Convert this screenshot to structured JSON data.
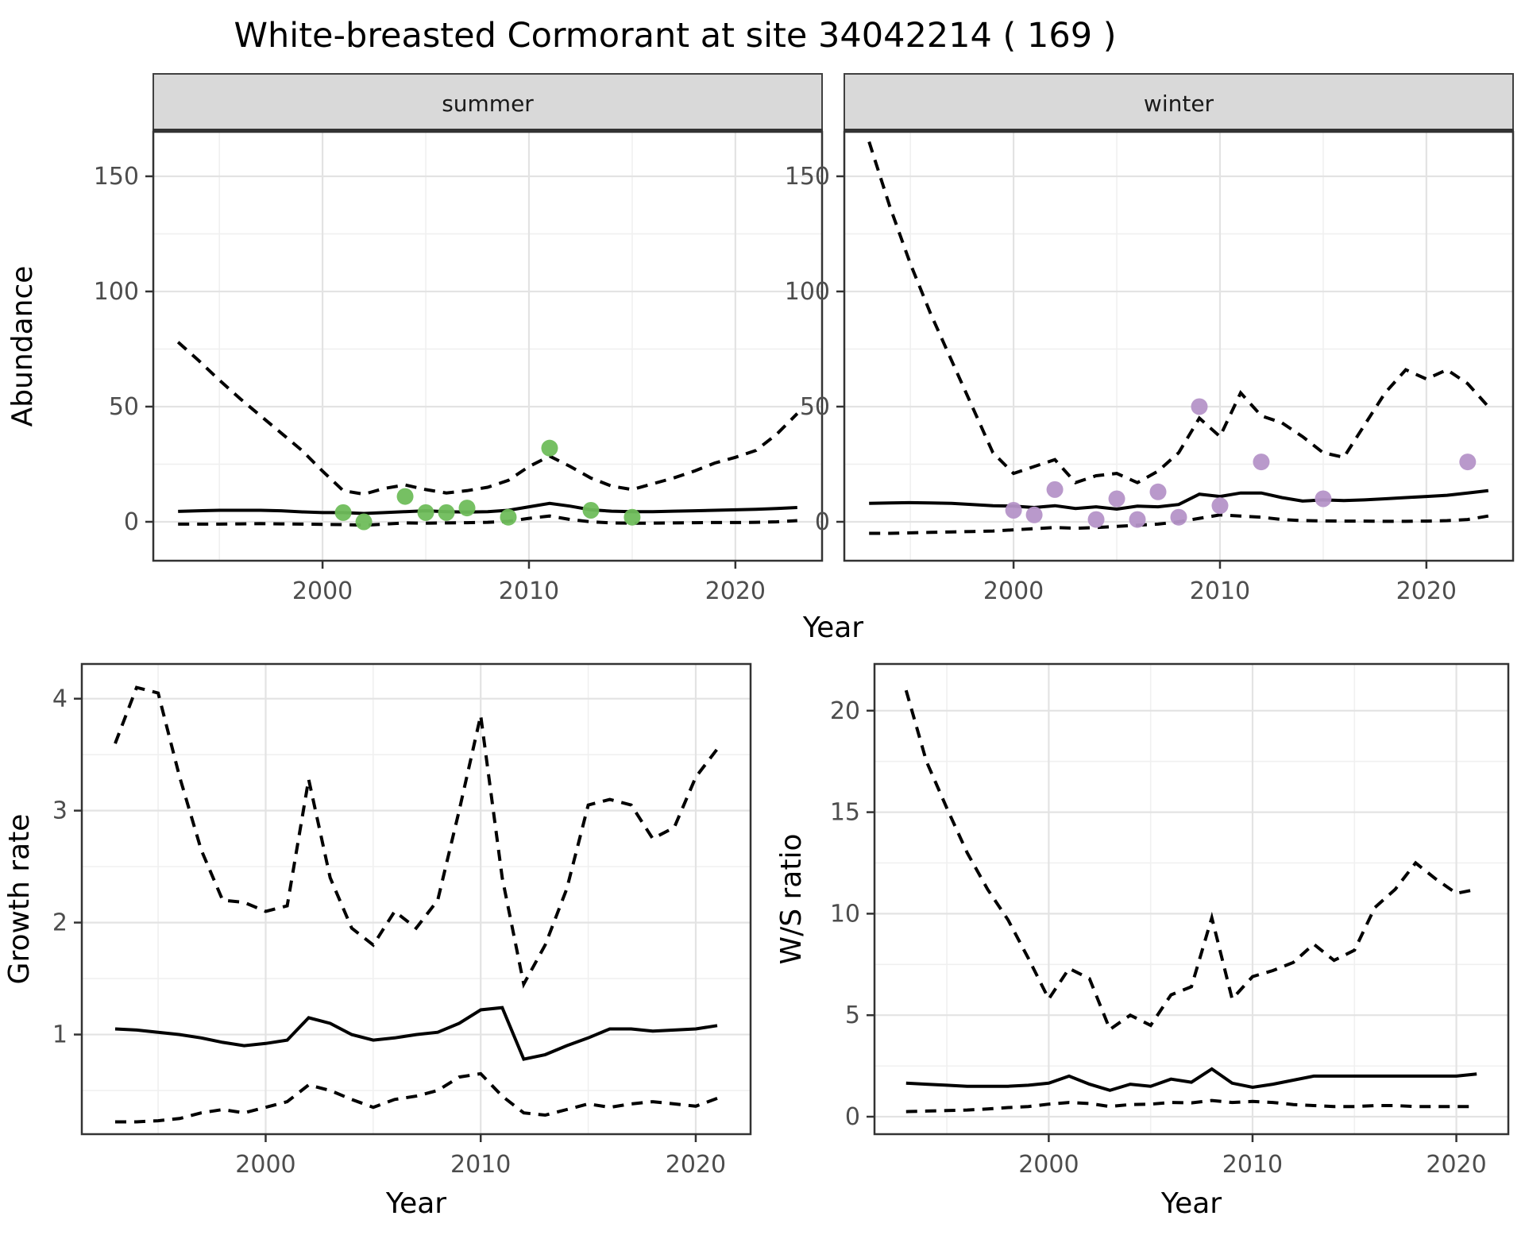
{
  "title": "White-breasted Cormorant at site 34042214 ( 169 )",
  "colors": {
    "summer_point": "#6fbd5b",
    "winter_point": "#b593c8",
    "line": "#000000",
    "strip_bg": "#d9d9d9",
    "panel_border": "#333333",
    "grid_major": "#e3e3e3",
    "grid_minor": "#f0f0f0",
    "tick_text": "#4d4d4d"
  },
  "labels": {
    "facet_summer": "summer",
    "facet_winter": "winter",
    "abundance_axis": "Abundance",
    "growth_axis": "Growth rate",
    "ws_axis": "W/S ratio",
    "year_axis_top": "Year",
    "year_axis_bottom_left": "Year",
    "year_axis_bottom_right": "Year"
  },
  "chart_data": [
    {
      "id": "abundance-summer",
      "type": "line",
      "facet": "summer",
      "xlabel": "Year",
      "ylabel": "Abundance",
      "xlim": [
        1991.8,
        2024.2
      ],
      "ylim": [
        -16.9,
        169.3
      ],
      "xticks": [
        2000,
        2010,
        2020
      ],
      "yticks": [
        0,
        50,
        100,
        150
      ],
      "xminor": [
        1995,
        2005,
        2015
      ],
      "yminor": [
        25,
        75,
        125
      ],
      "grid": true,
      "legend": "none",
      "series": [
        {
          "name": "upper-ci",
          "style": "dashed",
          "x": [
            1993,
            1994,
            1995,
            1996,
            1997,
            1998,
            1999,
            2000,
            2001,
            2002,
            2003,
            2004,
            2005,
            2006,
            2007,
            2008,
            2009,
            2010,
            2011,
            2012,
            2013,
            2014,
            2015,
            2016,
            2017,
            2018,
            2019,
            2020,
            2021,
            2022,
            2023
          ],
          "y": [
            78,
            70,
            61.5,
            53.5,
            46,
            38.5,
            31,
            22,
            13.5,
            12,
            14.5,
            16,
            14,
            12.5,
            13.5,
            15,
            18,
            24,
            28.5,
            24,
            19,
            15.5,
            14,
            16.5,
            19,
            22,
            25.5,
            28,
            31,
            38,
            47
          ]
        },
        {
          "name": "fitted-median",
          "style": "solid",
          "x": [
            1993,
            1994,
            1995,
            1996,
            1997,
            1998,
            1999,
            2000,
            2001,
            2002,
            2003,
            2004,
            2005,
            2006,
            2007,
            2008,
            2009,
            2010,
            2011,
            2012,
            2013,
            2014,
            2015,
            2016,
            2017,
            2018,
            2019,
            2020,
            2021,
            2022,
            2023
          ],
          "y": [
            4.5,
            4.8,
            5,
            5,
            5,
            4.8,
            4.3,
            4,
            4,
            3.6,
            4,
            4.4,
            4.8,
            4.4,
            4.2,
            4.4,
            5,
            6.5,
            8,
            6.8,
            5.2,
            4.6,
            4.4,
            4.4,
            4.6,
            4.8,
            5,
            5.2,
            5.4,
            5.8,
            6.2
          ]
        },
        {
          "name": "lower-ci",
          "style": "dashed",
          "x": [
            1993,
            1994,
            1995,
            1996,
            1997,
            1998,
            1999,
            2000,
            2001,
            2002,
            2003,
            2004,
            2005,
            2006,
            2007,
            2008,
            2009,
            2010,
            2011,
            2012,
            2013,
            2014,
            2015,
            2016,
            2017,
            2018,
            2019,
            2020,
            2021,
            2022,
            2023
          ],
          "y": [
            -1,
            -1,
            -1,
            -0.9,
            -0.8,
            -0.9,
            -1,
            -1.1,
            -1.2,
            -1.5,
            -1,
            -0.5,
            -0.6,
            -0.5,
            -0.4,
            -0.2,
            0.2,
            1.5,
            2.5,
            1,
            0,
            -0.5,
            -0.6,
            -0.6,
            -0.5,
            -0.4,
            -0.3,
            -0.3,
            -0.2,
            0,
            0.5
          ]
        },
        {
          "name": "observed-counts",
          "style": "points",
          "color": "#6fbd5b",
          "x": [
            2001,
            2002,
            2004,
            2005,
            2006,
            2007,
            2009,
            2011,
            2013,
            2015
          ],
          "y": [
            4,
            0,
            11,
            4,
            4,
            6,
            2,
            32,
            5,
            2
          ]
        }
      ]
    },
    {
      "id": "abundance-winter",
      "type": "line",
      "facet": "winter",
      "xlabel": "Year",
      "ylabel": "Abundance",
      "xlim": [
        1991.8,
        2024.2
      ],
      "ylim": [
        -16.9,
        169.3
      ],
      "xticks": [
        2000,
        2010,
        2020
      ],
      "yticks": [
        0,
        50,
        100,
        150
      ],
      "xminor": [
        1995,
        2005,
        2015
      ],
      "yminor": [
        25,
        75,
        125
      ],
      "grid": true,
      "legend": "none",
      "series": [
        {
          "name": "upper-ci",
          "style": "dashed",
          "x": [
            1993,
            1994,
            1995,
            1996,
            1997,
            1998,
            1999,
            2000,
            2001,
            2002,
            2003,
            2004,
            2005,
            2006,
            2007,
            2008,
            2009,
            2010,
            2011,
            2012,
            2013,
            2014,
            2015,
            2016,
            2017,
            2018,
            2019,
            2020,
            2021,
            2022,
            2023
          ],
          "y": [
            165,
            137,
            112,
            90,
            70,
            50,
            30,
            21,
            24,
            27,
            17,
            20,
            21,
            17,
            22,
            30,
            45,
            37,
            56,
            46,
            43,
            37,
            30,
            28,
            42,
            56,
            66,
            62,
            66,
            60,
            50
          ]
        },
        {
          "name": "fitted-median",
          "style": "solid",
          "x": [
            1993,
            1994,
            1995,
            1996,
            1997,
            1998,
            1999,
            2000,
            2001,
            2002,
            2003,
            2004,
            2005,
            2006,
            2007,
            2008,
            2009,
            2010,
            2011,
            2012,
            2013,
            2014,
            2015,
            2016,
            2017,
            2018,
            2019,
            2020,
            2021,
            2022,
            2023
          ],
          "y": [
            8,
            8.2,
            8.3,
            8.2,
            8,
            7.5,
            7,
            6.8,
            6.2,
            7,
            5.8,
            6.5,
            5.5,
            6.8,
            6.5,
            7.5,
            12,
            11,
            12.5,
            12.5,
            10.5,
            9,
            9.5,
            9.2,
            9.5,
            10,
            10.5,
            11,
            11.5,
            12.5,
            13.5
          ]
        },
        {
          "name": "lower-ci",
          "style": "dashed",
          "x": [
            1993,
            1994,
            1995,
            1996,
            1997,
            1998,
            1999,
            2000,
            2001,
            2002,
            2003,
            2004,
            2005,
            2006,
            2007,
            2008,
            2009,
            2010,
            2011,
            2012,
            2013,
            2014,
            2015,
            2016,
            2017,
            2018,
            2019,
            2020,
            2021,
            2022,
            2023
          ],
          "y": [
            -5,
            -5,
            -4.8,
            -4.6,
            -4.4,
            -4.2,
            -4,
            -3.5,
            -3,
            -2.5,
            -2.8,
            -2.5,
            -2,
            -1.5,
            -1,
            0,
            1.5,
            3,
            2.5,
            2,
            1,
            0.5,
            0.4,
            0.3,
            0.3,
            0.2,
            0.2,
            0.3,
            0.5,
            1,
            2.5
          ]
        },
        {
          "name": "observed-counts",
          "style": "points",
          "color": "#b593c8",
          "x": [
            2000,
            2001,
            2002,
            2004,
            2005,
            2006,
            2007,
            2008,
            2009,
            2010,
            2012,
            2015,
            2022
          ],
          "y": [
            5,
            3,
            14,
            1,
            10,
            1,
            13,
            2,
            50,
            7,
            26,
            10,
            26
          ]
        }
      ]
    },
    {
      "id": "growth-rate",
      "type": "line",
      "facet": null,
      "xlabel": "Year",
      "ylabel": "Growth rate",
      "xlim": [
        1991.45,
        2022.55
      ],
      "ylim": [
        0.11,
        4.31
      ],
      "xticks": [
        2000,
        2010,
        2020
      ],
      "yticks": [
        1,
        2,
        3,
        4
      ],
      "xminor": [
        1995,
        2005,
        2015
      ],
      "yminor": [
        0.5,
        1.5,
        2.5,
        3.5
      ],
      "grid": true,
      "legend": "none",
      "series": [
        {
          "name": "upper-ci",
          "style": "dashed",
          "x": [
            1993,
            1994,
            1995,
            1996,
            1997,
            1998,
            1999,
            2000,
            2001,
            2002,
            2003,
            2004,
            2005,
            2006,
            2007,
            2008,
            2009,
            2010,
            2011,
            2012,
            2013,
            2014,
            2015,
            2016,
            2017,
            2018,
            2019,
            2020,
            2021
          ],
          "y": [
            3.6,
            4.1,
            4.05,
            3.3,
            2.65,
            2.2,
            2.18,
            2.1,
            2.15,
            3.28,
            2.4,
            1.95,
            1.8,
            2.1,
            1.95,
            2.2,
            3.0,
            3.85,
            2.4,
            1.45,
            1.8,
            2.3,
            3.05,
            3.1,
            3.05,
            2.75,
            2.85,
            3.3,
            3.55
          ]
        },
        {
          "name": "fitted-median",
          "style": "solid",
          "x": [
            1993,
            1994,
            1995,
            1996,
            1997,
            1998,
            1999,
            2000,
            2001,
            2002,
            2003,
            2004,
            2005,
            2006,
            2007,
            2008,
            2009,
            2010,
            2011,
            2012,
            2013,
            2014,
            2015,
            2016,
            2017,
            2018,
            2019,
            2020,
            2021
          ],
          "y": [
            1.05,
            1.04,
            1.02,
            1.0,
            0.97,
            0.93,
            0.9,
            0.92,
            0.95,
            1.15,
            1.1,
            1.0,
            0.95,
            0.97,
            1.0,
            1.02,
            1.1,
            1.22,
            1.24,
            0.78,
            0.82,
            0.9,
            0.97,
            1.05,
            1.05,
            1.03,
            1.04,
            1.05,
            1.08
          ]
        },
        {
          "name": "lower-ci",
          "style": "dashed",
          "x": [
            1993,
            1994,
            1995,
            1996,
            1997,
            1998,
            1999,
            2000,
            2001,
            2002,
            2003,
            2004,
            2005,
            2006,
            2007,
            2008,
            2009,
            2010,
            2011,
            2012,
            2013,
            2014,
            2015,
            2016,
            2017,
            2018,
            2019,
            2020,
            2021
          ],
          "y": [
            0.22,
            0.22,
            0.23,
            0.25,
            0.3,
            0.33,
            0.3,
            0.35,
            0.4,
            0.55,
            0.5,
            0.42,
            0.35,
            0.42,
            0.45,
            0.5,
            0.62,
            0.65,
            0.45,
            0.3,
            0.28,
            0.33,
            0.38,
            0.35,
            0.38,
            0.4,
            0.38,
            0.36,
            0.43
          ]
        }
      ]
    },
    {
      "id": "ws-ratio",
      "type": "line",
      "facet": null,
      "xlabel": "Year",
      "ylabel": "W/S ratio",
      "xlim": [
        1991.45,
        2022.55
      ],
      "ylim": [
        -0.86,
        22.3
      ],
      "xticks": [
        2000,
        2010,
        2020
      ],
      "yticks": [
        0,
        5,
        10,
        15,
        20
      ],
      "xminor": [
        1995,
        2005,
        2015
      ],
      "yminor": [
        2.5,
        7.5,
        12.5,
        17.5
      ],
      "grid": true,
      "legend": "none",
      "series": [
        {
          "name": "upper-ci",
          "style": "dashed",
          "x": [
            1993,
            1994,
            1995,
            1996,
            1997,
            1998,
            1999,
            2000,
            2001,
            2002,
            2003,
            2004,
            2005,
            2006,
            2007,
            2008,
            2009,
            2010,
            2011,
            2012,
            2013,
            2014,
            2015,
            2016,
            2017,
            2018,
            2019,
            2020,
            2021
          ],
          "y": [
            21,
            17.5,
            15.2,
            13,
            11.2,
            9.7,
            7.8,
            5.8,
            7.3,
            6.8,
            4.3,
            5.0,
            4.5,
            6.0,
            6.4,
            9.8,
            5.8,
            6.9,
            7.2,
            7.6,
            8.5,
            7.7,
            8.2,
            10.3,
            11.2,
            12.5,
            11.7,
            11.0,
            11.2
          ]
        },
        {
          "name": "fitted-median",
          "style": "solid",
          "x": [
            1993,
            1994,
            1995,
            1996,
            1997,
            1998,
            1999,
            2000,
            2001,
            2002,
            2003,
            2004,
            2005,
            2006,
            2007,
            2008,
            2009,
            2010,
            2011,
            2012,
            2013,
            2014,
            2015,
            2016,
            2017,
            2018,
            2019,
            2020,
            2021
          ],
          "y": [
            1.65,
            1.6,
            1.55,
            1.5,
            1.5,
            1.5,
            1.55,
            1.65,
            2.0,
            1.6,
            1.3,
            1.6,
            1.5,
            1.85,
            1.7,
            2.35,
            1.65,
            1.45,
            1.6,
            1.8,
            2.0,
            2.0,
            2.0,
            2.0,
            2.0,
            2.0,
            2.0,
            2.0,
            2.1
          ]
        },
        {
          "name": "lower-ci",
          "style": "dashed",
          "x": [
            1993,
            1994,
            1995,
            1996,
            1997,
            1998,
            1999,
            2000,
            2001,
            2002,
            2003,
            2004,
            2005,
            2006,
            2007,
            2008,
            2009,
            2010,
            2011,
            2012,
            2013,
            2014,
            2015,
            2016,
            2017,
            2018,
            2019,
            2020,
            2021
          ],
          "y": [
            0.25,
            0.28,
            0.3,
            0.33,
            0.38,
            0.45,
            0.5,
            0.62,
            0.7,
            0.65,
            0.5,
            0.6,
            0.62,
            0.7,
            0.68,
            0.8,
            0.7,
            0.75,
            0.7,
            0.6,
            0.55,
            0.5,
            0.5,
            0.55,
            0.55,
            0.5,
            0.5,
            0.5,
            0.5
          ]
        }
      ]
    }
  ]
}
